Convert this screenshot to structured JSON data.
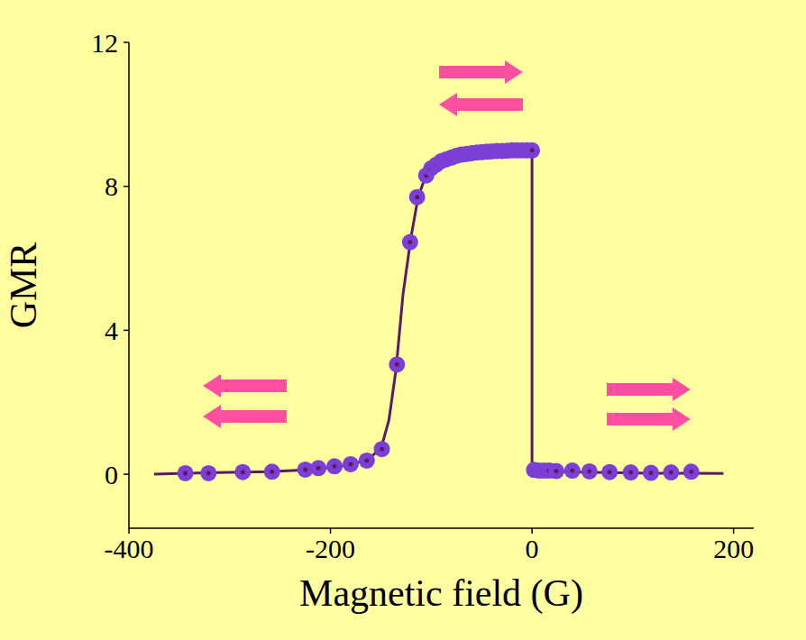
{
  "chart_data": {
    "type": "line",
    "x_label": "Magnetic field (G)",
    "y_label": "GMR",
    "xlim": [
      -400,
      220
    ],
    "xticks": [
      -400,
      -200,
      0,
      200
    ],
    "ylim": [
      -1.5,
      12
    ],
    "yticks": [
      0,
      4,
      8,
      12
    ],
    "grid": false,
    "series": [
      {
        "type": "line",
        "color": "#5c1a66",
        "line_style": "solid",
        "x": [
          -375,
          -343,
          -300,
          -260,
          -220,
          -190,
          -165,
          -150,
          -142,
          -135,
          -128,
          -120,
          -113,
          -106,
          -98,
          -85,
          -70,
          -50,
          -25,
          0,
          0,
          20,
          60,
          120,
          190
        ],
        "values": [
          0,
          0.03,
          0.05,
          0.07,
          0.13,
          0.22,
          0.38,
          0.7,
          1.5,
          2.9,
          5.0,
          6.6,
          7.7,
          8.25,
          8.5,
          8.7,
          8.85,
          8.95,
          9.0,
          9.0,
          0.1,
          0.08,
          0.05,
          0.03,
          0.02
        ]
      },
      {
        "type": "scatter",
        "color": "#7b3fd6",
        "marker": "circle",
        "x": [
          -344,
          -321,
          -287,
          -258,
          -225,
          -212,
          -196,
          -180,
          -164,
          -149,
          -134,
          -121,
          -114,
          -105,
          -100,
          -95,
          -90,
          -85,
          -80,
          -75,
          -70,
          -65,
          -60,
          -55,
          -50,
          -45,
          -40,
          -35,
          -30,
          -25,
          -20,
          -15,
          -10,
          -5,
          0,
          2,
          7,
          12,
          17,
          24,
          40,
          57,
          77,
          98,
          118,
          138,
          158
        ],
        "values": [
          0.03,
          0.03,
          0.06,
          0.07,
          0.13,
          0.17,
          0.22,
          0.28,
          0.38,
          0.7,
          3.05,
          6.45,
          7.7,
          8.3,
          8.5,
          8.6,
          8.7,
          8.75,
          8.8,
          8.85,
          8.88,
          8.9,
          8.92,
          8.94,
          8.95,
          8.96,
          8.97,
          8.98,
          8.98,
          8.99,
          9.0,
          9.0,
          9.0,
          9.0,
          9.0,
          0.12,
          0.1,
          0.1,
          0.1,
          0.09,
          0.1,
          0.08,
          0.06,
          0.05,
          0.04,
          0.05,
          0.07
        ]
      }
    ]
  }
}
